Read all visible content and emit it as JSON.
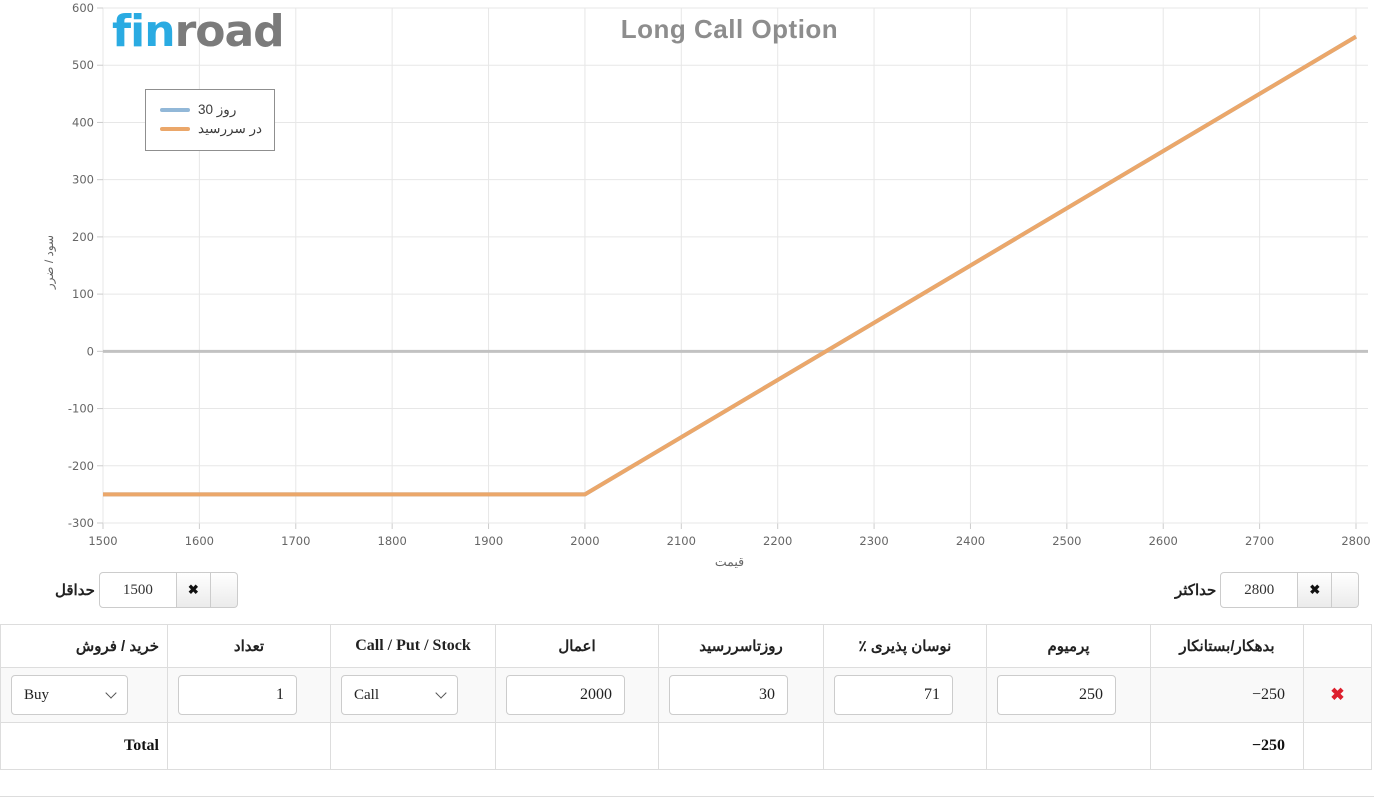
{
  "logo": {
    "part1": "fin",
    "part2": "road"
  },
  "chart_data": {
    "type": "line",
    "title": "Long Call Option",
    "xlabel": "قیمت",
    "ylabel": "سود / ضرر",
    "xlim": [
      1500,
      2800
    ],
    "ylim": [
      -300,
      600
    ],
    "x_ticks": [
      1500,
      1600,
      1700,
      1800,
      1900,
      2000,
      2100,
      2200,
      2300,
      2400,
      2500,
      2600,
      2700,
      2800
    ],
    "y_ticks": [
      600,
      500,
      400,
      300,
      200,
      100,
      0,
      -100,
      -200,
      -300
    ],
    "grid": true,
    "zero_line": true,
    "legend_position": "top-left",
    "series": [
      {
        "name": "روز 30",
        "color": "#92b8d8",
        "points": [
          [
            1500,
            -250
          ],
          [
            2000,
            -250
          ],
          [
            2800,
            550
          ]
        ]
      },
      {
        "name": "در سررسید",
        "color": "#eba76a",
        "points": [
          [
            1500,
            -250
          ],
          [
            2000,
            -250
          ],
          [
            2800,
            550
          ]
        ]
      }
    ]
  },
  "range_controls": {
    "min": {
      "label": "حداقل",
      "value": "1500",
      "clear_label": "✖"
    },
    "max": {
      "label": "حداکثر",
      "value": "2800",
      "clear_label": "✖"
    }
  },
  "table": {
    "headers": [
      "خرید / فروش",
      "تعداد",
      "Call / Put / Stock",
      "اعمال",
      "روزتاسررسید",
      "نوسان پذیری ٪",
      "پرمیوم",
      "بدهکار/بستانکار",
      ""
    ],
    "row": {
      "side": "Buy",
      "quantity": "1",
      "type": "Call",
      "strike": "2000",
      "days": "30",
      "volatility": "71",
      "premium": "250",
      "debit_credit": "−250",
      "delete_label": "✖"
    },
    "total": {
      "label": "Total",
      "value": "−250"
    }
  },
  "colors": {
    "logo_blue": "#2aabe2",
    "logo_gray": "#7b7b7b",
    "title_gray": "#8d8d8d",
    "grid_line": "#e7e7e7",
    "zero_line": "#c2c2c2",
    "tick_text": "#666666",
    "delete_red": "#dd1f2d"
  }
}
